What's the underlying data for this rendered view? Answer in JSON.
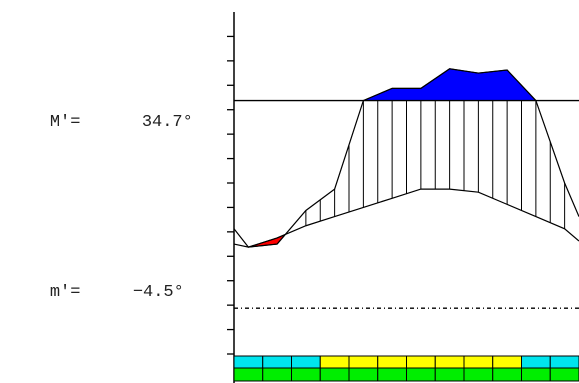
{
  "readouts": {
    "max": {
      "label": "M′=",
      "value": "34.7°"
    },
    "min": {
      "label": "m′=",
      "value": "−4.5°"
    }
  },
  "colors": {
    "above_fill": "#0000ff",
    "below_fill": "#ff0000",
    "strip_top": [
      "#00e5ee",
      "#00e5ee",
      "#00e5ee",
      "#ffff00",
      "#ffff00",
      "#ffff00",
      "#ffff00",
      "#ffff00",
      "#ffff00",
      "#ffff00",
      "#00e5ee",
      "#00e5ee"
    ],
    "strip_bottom": [
      "#00ee00",
      "#00ee00",
      "#00ee00",
      "#00ee00",
      "#00ee00",
      "#00ee00",
      "#00ee00",
      "#00ee00",
      "#00ee00",
      "#00ee00",
      "#00ee00",
      "#00ee00"
    ]
  },
  "chart_data": {
    "type": "area",
    "title": "",
    "xlabel": "",
    "ylabel": "",
    "xlim": [
      0,
      12
    ],
    "ylim": [
      -12,
      44
    ],
    "grid": false,
    "legend": "none",
    "reference_lines": {
      "upper": 29.5,
      "lower": -4.5
    },
    "series": [
      {
        "x": [
          0,
          0.5,
          1.5,
          2.5,
          3.5,
          4.5,
          5.5,
          6.5,
          7.5,
          8.5,
          9.5,
          10.5,
          11.5,
          12
        ],
        "values": [
          8.5,
          5.5,
          6.0,
          11.5,
          15.0,
          29.5,
          31.5,
          31.5,
          34.7,
          34.0,
          34.5,
          29.5,
          16.0,
          10.5
        ]
      },
      {
        "x": [
          0,
          0.5,
          1.5,
          2.5,
          3.5,
          4.5,
          5.5,
          6.5,
          7.5,
          8.5,
          9.5,
          10.5,
          11.5,
          12
        ],
        "values": [
          6.0,
          5.5,
          7.0,
          9.0,
          10.5,
          12.0,
          13.5,
          15.0,
          15.0,
          14.5,
          12.5,
          10.5,
          8.5,
          6.5
        ]
      }
    ],
    "strip_segments": 12
  }
}
